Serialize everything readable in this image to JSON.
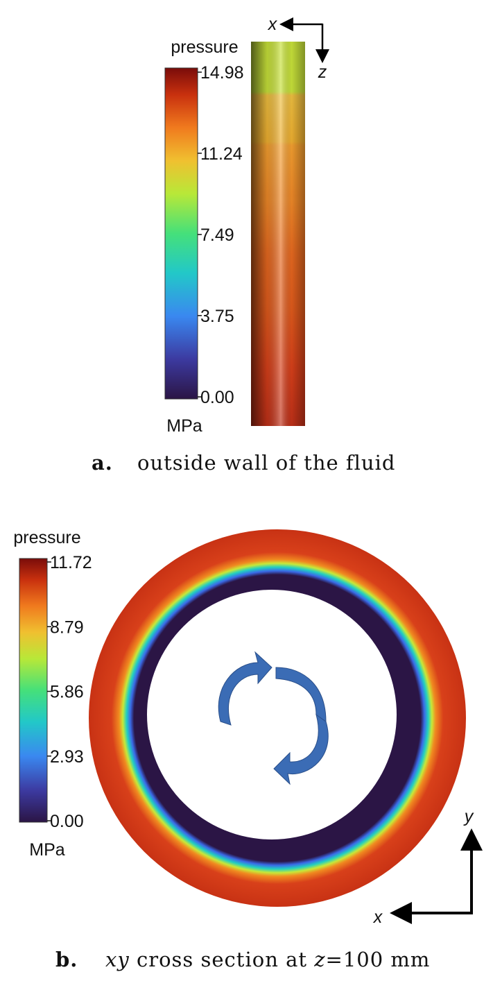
{
  "panels": [
    {
      "label": "a.",
      "caption": "outside wall of the fluid",
      "colorbar": {
        "title": "pressure",
        "unit": "MPa",
        "range": [
          0,
          14.98
        ],
        "ticks": [
          {
            "value": 0,
            "label": "0.00"
          },
          3.75,
          7.49,
          11.24,
          14.98
        ]
      },
      "axes": {
        "horizontal": "x",
        "vertical": "z"
      }
    },
    {
      "label": "b.",
      "caption": [
        "xy",
        " cross section at ",
        "z",
        "=100 mm"
      ],
      "colorbar": {
        "title": "pressure",
        "unit": "MPa",
        "range": [
          0,
          11.72
        ],
        "ticks": [
          {
            "value": 0,
            "label": "0.00"
          },
          2.93,
          5.86,
          8.79,
          11.72
        ]
      },
      "axes": {
        "horizontal": "x",
        "vertical": "y"
      }
    }
  ]
}
